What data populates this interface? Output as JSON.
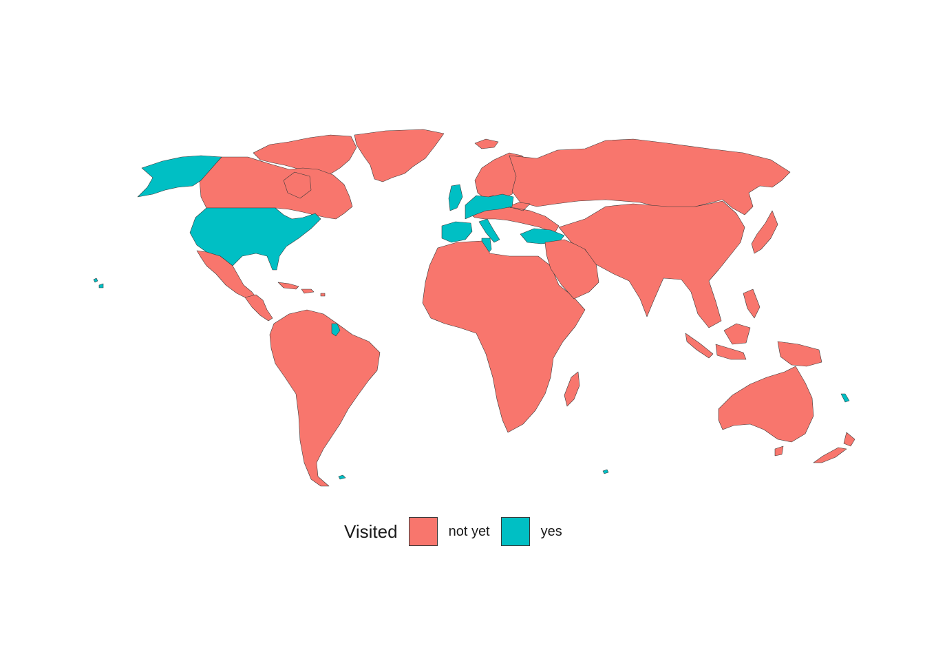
{
  "map": {
    "colors": {
      "not_yet": "#F8766D",
      "yes": "#00BFC4",
      "border": "#3a3a3a",
      "background": "#ffffff"
    },
    "regions": [
      {
        "name": "greenland",
        "status": "not_yet"
      },
      {
        "name": "canada",
        "status": "not_yet"
      },
      {
        "name": "canadian-arctic-islands",
        "status": "not_yet"
      },
      {
        "name": "alaska",
        "status": "yes"
      },
      {
        "name": "united-states",
        "status": "yes"
      },
      {
        "name": "mexico",
        "status": "not_yet"
      },
      {
        "name": "central-america",
        "status": "not_yet"
      },
      {
        "name": "caribbean",
        "status": "not_yet"
      },
      {
        "name": "south-america",
        "status": "not_yet"
      },
      {
        "name": "french-guiana",
        "status": "yes"
      },
      {
        "name": "iceland",
        "status": "not_yet"
      },
      {
        "name": "scandinavia",
        "status": "not_yet"
      },
      {
        "name": "russia",
        "status": "not_yet"
      },
      {
        "name": "europe",
        "status": "not_yet"
      },
      {
        "name": "western-europe-visited",
        "status": "yes"
      },
      {
        "name": "iberia",
        "status": "yes"
      },
      {
        "name": "italy",
        "status": "yes"
      },
      {
        "name": "turkey",
        "status": "yes"
      },
      {
        "name": "tunisia",
        "status": "yes"
      },
      {
        "name": "africa",
        "status": "not_yet"
      },
      {
        "name": "madagascar",
        "status": "not_yet"
      },
      {
        "name": "middle-east",
        "status": "not_yet"
      },
      {
        "name": "asia",
        "status": "not_yet"
      },
      {
        "name": "japan",
        "status": "not_yet"
      },
      {
        "name": "southeast-asia-islands",
        "status": "not_yet"
      },
      {
        "name": "australia",
        "status": "not_yet"
      },
      {
        "name": "new-zealand",
        "status": "not_yet"
      },
      {
        "name": "new-caledonia",
        "status": "yes"
      },
      {
        "name": "hawaii",
        "status": "yes"
      },
      {
        "name": "falklands",
        "status": "yes"
      },
      {
        "name": "kerguelen",
        "status": "yes"
      }
    ]
  },
  "legend": {
    "title": "Visited",
    "items": [
      {
        "label": "not yet",
        "color": "#F8766D"
      },
      {
        "label": "yes",
        "color": "#00BFC4"
      }
    ]
  }
}
